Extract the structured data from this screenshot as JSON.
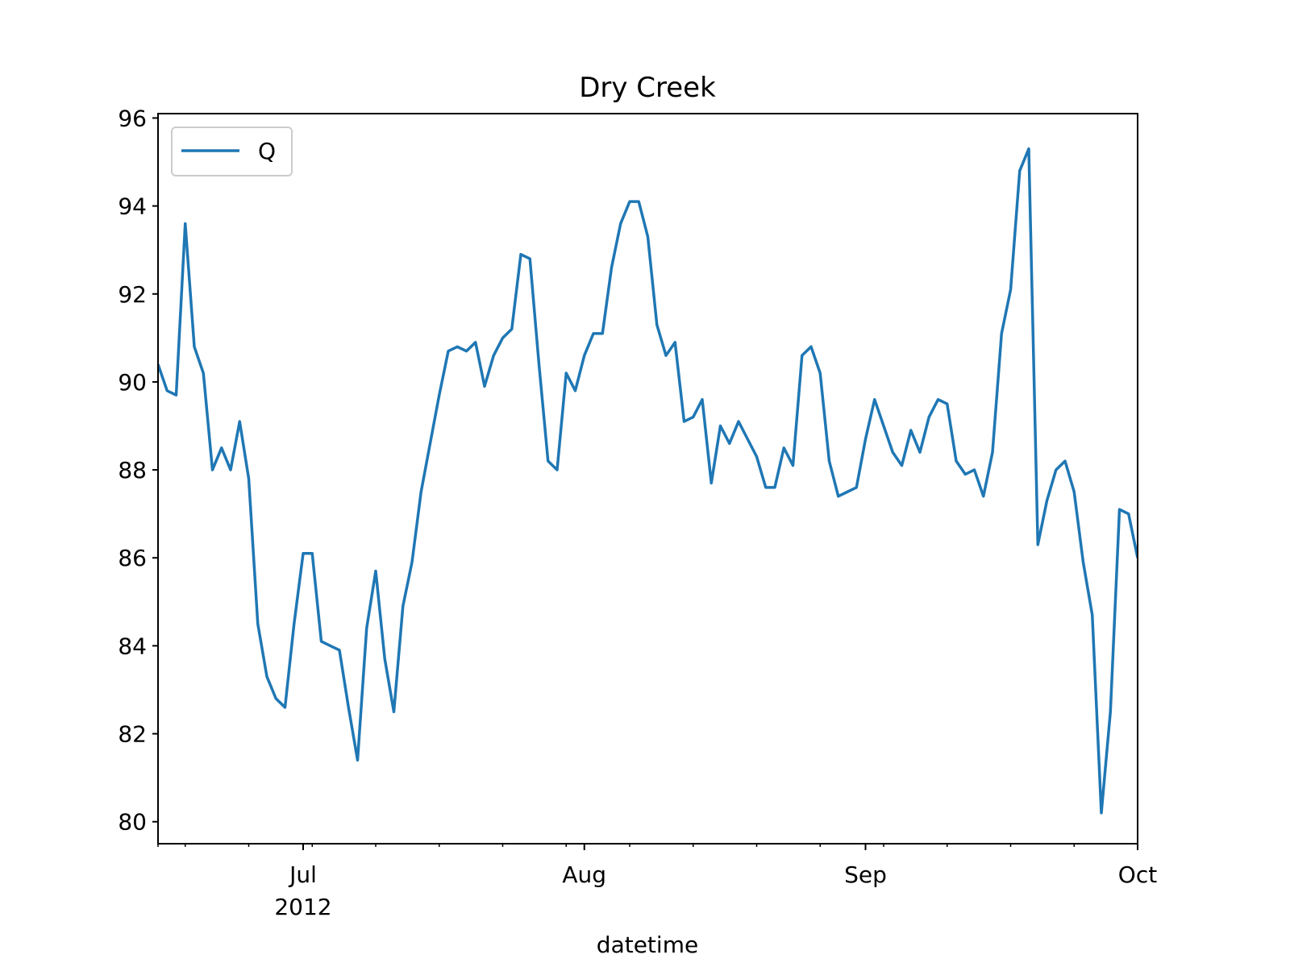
{
  "chart_data": {
    "type": "line",
    "title": "Dry Creek",
    "xlabel": "datetime",
    "ylabel": "",
    "x_start": "2012-06-15",
    "x_end": "2012-10-01",
    "ylim": [
      79.5,
      96.1
    ],
    "yticks": [
      80,
      82,
      84,
      86,
      88,
      90,
      92,
      94,
      96
    ],
    "xticks": [
      {
        "date": "2012-07-01",
        "label": "Jul",
        "sublabel": "2012"
      },
      {
        "date": "2012-08-01",
        "label": "Aug",
        "sublabel": ""
      },
      {
        "date": "2012-09-01",
        "label": "Sep",
        "sublabel": ""
      },
      {
        "date": "2012-10-01",
        "label": "Oct",
        "sublabel": ""
      }
    ],
    "grid": false,
    "legend": {
      "position": "top-left",
      "entries": [
        "Q"
      ]
    },
    "series": [
      {
        "name": "Q",
        "color": "#1f77b4",
        "x": [
          "2012-06-15",
          "2012-06-16",
          "2012-06-17",
          "2012-06-18",
          "2012-06-19",
          "2012-06-20",
          "2012-06-21",
          "2012-06-22",
          "2012-06-23",
          "2012-06-24",
          "2012-06-25",
          "2012-06-26",
          "2012-06-27",
          "2012-06-28",
          "2012-06-29",
          "2012-06-30",
          "2012-07-01",
          "2012-07-02",
          "2012-07-03",
          "2012-07-04",
          "2012-07-05",
          "2012-07-06",
          "2012-07-07",
          "2012-07-08",
          "2012-07-09",
          "2012-07-10",
          "2012-07-11",
          "2012-07-12",
          "2012-07-13",
          "2012-07-14",
          "2012-07-15",
          "2012-07-16",
          "2012-07-17",
          "2012-07-18",
          "2012-07-19",
          "2012-07-20",
          "2012-07-21",
          "2012-07-22",
          "2012-07-23",
          "2012-07-24",
          "2012-07-25",
          "2012-07-26",
          "2012-07-27",
          "2012-07-28",
          "2012-07-29",
          "2012-07-30",
          "2012-07-31",
          "2012-08-01",
          "2012-08-02",
          "2012-08-03",
          "2012-08-04",
          "2012-08-05",
          "2012-08-06",
          "2012-08-07",
          "2012-08-08",
          "2012-08-09",
          "2012-08-10",
          "2012-08-11",
          "2012-08-12",
          "2012-08-13",
          "2012-08-14",
          "2012-08-15",
          "2012-08-16",
          "2012-08-17",
          "2012-08-18",
          "2012-08-19",
          "2012-08-20",
          "2012-08-21",
          "2012-08-22",
          "2012-08-23",
          "2012-08-24",
          "2012-08-25",
          "2012-08-26",
          "2012-08-27",
          "2012-08-28",
          "2012-08-29",
          "2012-08-30",
          "2012-08-31",
          "2012-09-01",
          "2012-09-02",
          "2012-09-03",
          "2012-09-04",
          "2012-09-05",
          "2012-09-06",
          "2012-09-07",
          "2012-09-08",
          "2012-09-09",
          "2012-09-10",
          "2012-09-11",
          "2012-09-12",
          "2012-09-13",
          "2012-09-14",
          "2012-09-15",
          "2012-09-16",
          "2012-09-17",
          "2012-09-18",
          "2012-09-19",
          "2012-09-20",
          "2012-09-21",
          "2012-09-22",
          "2012-09-23",
          "2012-09-24",
          "2012-09-25",
          "2012-09-26",
          "2012-09-27",
          "2012-09-28",
          "2012-09-29",
          "2012-09-30",
          "2012-10-01"
        ],
        "values": [
          90.4,
          89.8,
          89.7,
          93.6,
          90.8,
          90.2,
          88.0,
          88.5,
          88.0,
          89.1,
          87.8,
          84.5,
          83.3,
          82.8,
          82.6,
          84.5,
          86.1,
          86.1,
          84.1,
          84.0,
          83.9,
          82.6,
          81.4,
          84.4,
          85.7,
          83.7,
          82.5,
          84.9,
          85.9,
          87.5,
          88.6,
          89.7,
          90.7,
          90.8,
          90.7,
          90.9,
          89.9,
          90.6,
          91.0,
          91.2,
          92.9,
          92.8,
          90.4,
          88.2,
          88.0,
          90.2,
          89.8,
          90.6,
          91.1,
          91.1,
          92.6,
          93.6,
          94.1,
          94.1,
          93.3,
          91.3,
          90.6,
          90.9,
          89.1,
          89.2,
          89.6,
          87.7,
          89.0,
          88.6,
          89.1,
          88.7,
          88.3,
          87.6,
          87.6,
          88.5,
          88.1,
          90.6,
          90.8,
          90.2,
          88.2,
          87.4,
          87.5,
          87.6,
          88.7,
          89.6,
          89.0,
          88.4,
          88.1,
          88.9,
          88.4,
          89.2,
          89.6,
          89.5,
          88.2,
          87.9,
          88.0,
          87.4,
          88.4,
          91.1,
          92.1,
          94.8,
          95.3,
          86.3,
          87.3,
          88.0,
          88.2,
          87.5,
          85.9,
          84.7,
          80.2,
          82.5,
          87.1,
          87.0,
          86.0
        ]
      }
    ]
  }
}
